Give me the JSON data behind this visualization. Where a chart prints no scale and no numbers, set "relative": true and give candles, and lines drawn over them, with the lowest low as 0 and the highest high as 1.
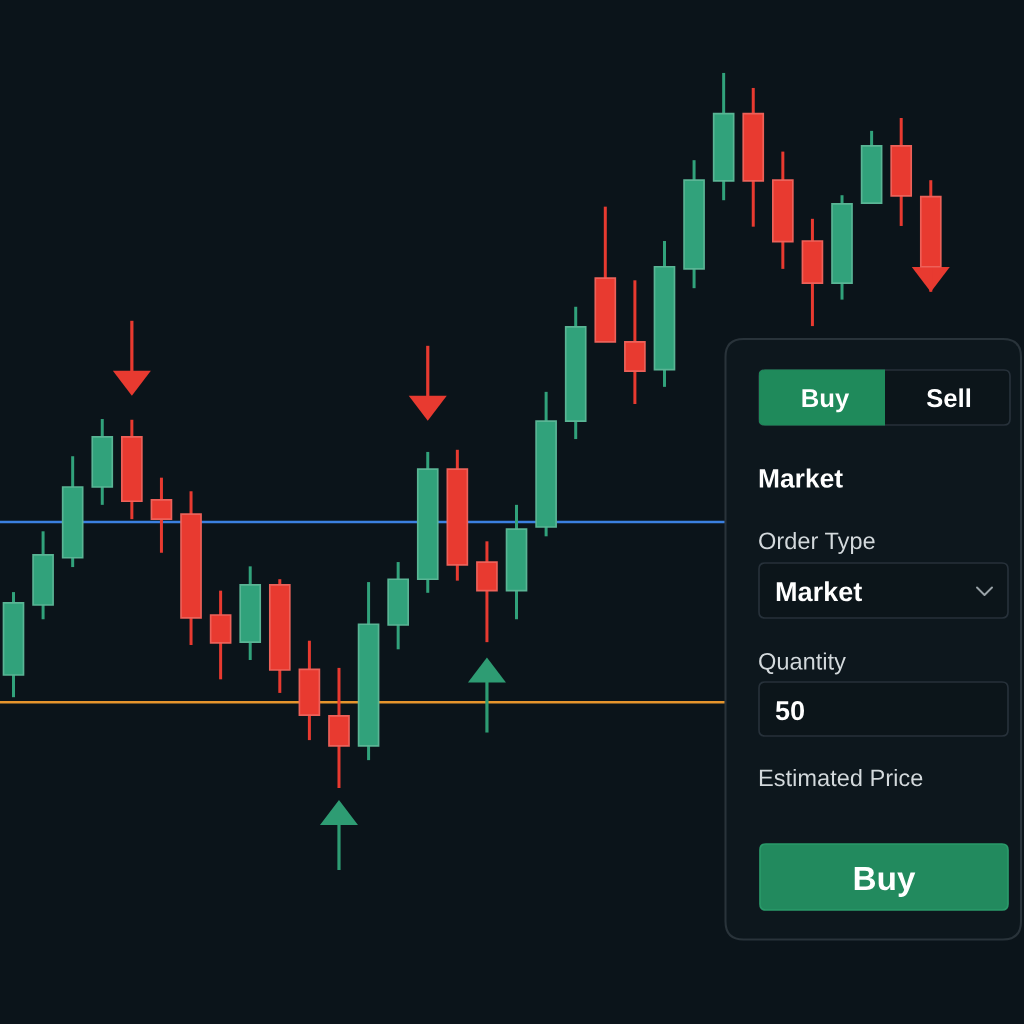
{
  "chart_data": [
    {
      "type": "candlestick",
      "relative": true,
      "categories": [
        null,
        null,
        null,
        null,
        null,
        null,
        null,
        null,
        null,
        null,
        null,
        null,
        null,
        null,
        null,
        null,
        null,
        null,
        null,
        null,
        null,
        null,
        null,
        null,
        null,
        null,
        null,
        null,
        null,
        null,
        null,
        null
      ],
      "ohlc": [
        [
          0.158,
          0.274,
          0.127,
          0.259
        ],
        [
          0.256,
          0.359,
          0.236,
          0.326
        ],
        [
          0.322,
          0.464,
          0.309,
          0.421
        ],
        [
          0.421,
          0.516,
          0.396,
          0.491
        ],
        [
          0.491,
          0.515,
          0.376,
          0.401
        ],
        [
          0.403,
          0.434,
          0.329,
          0.376
        ],
        [
          0.383,
          0.415,
          0.2,
          0.238
        ],
        [
          0.242,
          0.276,
          0.152,
          0.203
        ],
        [
          0.204,
          0.31,
          0.179,
          0.284
        ],
        [
          0.284,
          0.292,
          0.133,
          0.165
        ],
        [
          0.166,
          0.206,
          0.067,
          0.102
        ],
        [
          0.101,
          0.168,
          0.0,
          0.059
        ],
        [
          0.059,
          0.288,
          0.039,
          0.229
        ],
        [
          0.228,
          0.316,
          0.194,
          0.292
        ],
        [
          0.292,
          0.47,
          0.273,
          0.446
        ],
        [
          0.446,
          0.473,
          0.29,
          0.312
        ],
        [
          0.316,
          0.345,
          0.204,
          0.276
        ],
        [
          0.276,
          0.396,
          0.236,
          0.362
        ],
        [
          0.365,
          0.554,
          0.352,
          0.513
        ],
        [
          0.513,
          0.673,
          0.488,
          0.645
        ],
        [
          0.713,
          0.813,
          0.624,
          0.624
        ],
        [
          0.624,
          0.71,
          0.537,
          0.583
        ],
        [
          0.585,
          0.765,
          0.561,
          0.729
        ],
        [
          0.726,
          0.878,
          0.699,
          0.85
        ],
        [
          0.849,
          1.0,
          0.822,
          0.943
        ],
        [
          0.943,
          0.979,
          0.785,
          0.849
        ],
        [
          0.85,
          0.89,
          0.726,
          0.764
        ],
        [
          0.765,
          0.796,
          0.646,
          0.706
        ],
        [
          0.706,
          0.829,
          0.683,
          0.817
        ],
        [
          0.818,
          0.919,
          0.818,
          0.898
        ],
        [
          0.898,
          0.937,
          0.786,
          0.828
        ],
        [
          0.827,
          0.85,
          0.694,
          0.729
        ]
      ],
      "colors": [
        "#31a27b",
        "#31a27b",
        "#31a27b",
        "#31a27b",
        "#e83a30",
        "#e83a30",
        "#e83a30",
        "#e83a30",
        "#31a27b",
        "#e83a30",
        "#e83a30",
        "#e83a30",
        "#31a27b",
        "#31a27b",
        "#31a27b",
        "#e83a30",
        "#e83a30",
        "#31a27b",
        "#31a27b",
        "#31a27b",
        "#e83a30",
        "#e83a30",
        "#31a27b",
        "#31a27b",
        "#31a27b",
        "#e83a30",
        "#e83a30",
        "#e83a30",
        "#31a27b",
        "#31a27b",
        "#e83a30",
        "#e83a30"
      ],
      "series": [
        {
          "type": "scatter",
          "color": "#e83a30",
          "values": [
            null,
            null,
            null,
            null,
            0.566,
            null,
            null,
            null,
            null,
            null,
            null,
            null,
            null,
            null,
            0.531,
            null,
            null,
            null,
            null,
            null,
            null,
            null,
            null,
            null,
            null,
            null,
            null,
            null,
            null,
            null,
            null,
            0.711
          ]
        },
        {
          "type": "scatter",
          "color": "#2e9c73",
          "values": [
            null,
            null,
            null,
            null,
            null,
            null,
            null,
            null,
            null,
            null,
            null,
            null,
            null,
            null,
            null,
            null,
            0.165,
            null,
            null,
            null,
            null,
            null,
            null,
            null,
            null,
            null,
            null,
            null,
            null,
            null,
            null,
            null
          ]
        }
      ],
      "ref_lines": [
        {
          "axis": "y",
          "value": 0.372,
          "color": "#3b80e0"
        },
        {
          "axis": "y",
          "value": 0.12,
          "color": "#e6952d"
        }
      ]
    },
    {
      "type": "other",
      "annotations": [
        "Buy",
        "Sell",
        "Market",
        "Order Type",
        "Market",
        "Quantity",
        "50",
        "Estimated Price",
        "Buy"
      ]
    }
  ]
}
